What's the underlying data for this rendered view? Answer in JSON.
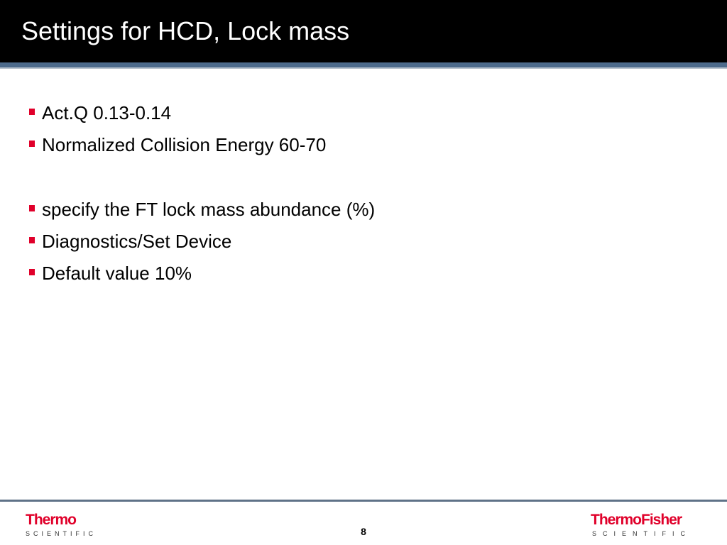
{
  "slide": {
    "title": "Settings for HCD, Lock mass",
    "bullets": [
      "Act.Q 0.13-0.14",
      "Normalized Collision Energy 60-70",
      "specify the FT lock mass abundance (%)",
      "Diagnostics/Set Device",
      "Default value 10%"
    ],
    "page_number": "8"
  },
  "footer": {
    "left_logo": {
      "word": "Thermo",
      "sub": "SCIENTIFIC"
    },
    "right_logo": {
      "word": "ThermoFisher",
      "sub": "SCIENTIFIC"
    }
  },
  "colors": {
    "title_bar": "#000000",
    "title_rule": "#4d6b8c",
    "bullet_marker": "#e0002a",
    "logo_red": "#e0002a"
  }
}
